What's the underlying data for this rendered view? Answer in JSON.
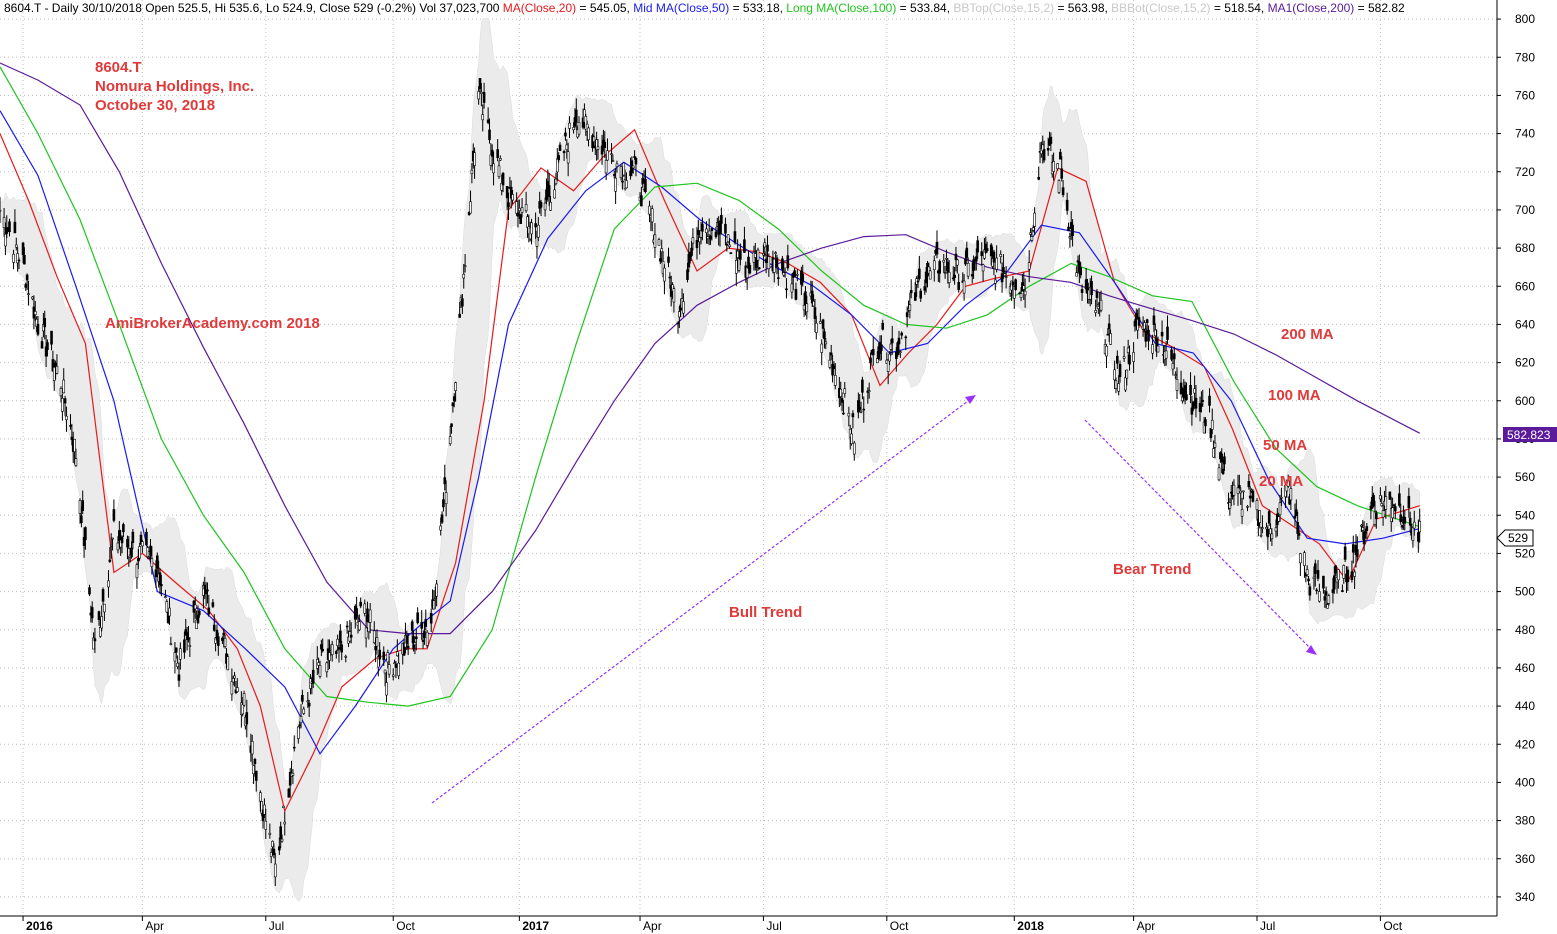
{
  "header": {
    "parts": [
      {
        "text": "8604.T - Daily 30/10/2018 Open 525.5, Hi 535.6, Lo 524.9, Close 529 (-0.2%) Vol 37,023,700 ",
        "color": "#000000"
      },
      {
        "text": "MA(Close,20)",
        "color": "#e8191c"
      },
      {
        "text": " = 545.05, ",
        "color": "#000000"
      },
      {
        "text": "Mid MA(Close,50)",
        "color": "#1a1aee"
      },
      {
        "text": " = 533.18, ",
        "color": "#000000"
      },
      {
        "text": "Long MA(Close,100)",
        "color": "#1fc41f"
      },
      {
        "text": " = 533.84, ",
        "color": "#000000"
      },
      {
        "text": "BBTop(Close,15,2)",
        "color": "#c8c8c8"
      },
      {
        "text": " = 563.98, ",
        "color": "#000000"
      },
      {
        "text": "BBBot(Close,15,2)",
        "color": "#c8c8c8"
      },
      {
        "text": " = 518.54, ",
        "color": "#000000"
      },
      {
        "text": "MA1(Close,200)",
        "color": "#5a1a9a"
      },
      {
        "text": " = 582.82",
        "color": "#000000"
      }
    ]
  },
  "title_block": {
    "line1": "8604.T",
    "line2": "Nomura Holdings, Inc.",
    "line3": "October 30, 2018",
    "color": "#e03a3a"
  },
  "watermark": {
    "text": "AmiBrokerAcademy.com  2018",
    "color": "#e03a3a"
  },
  "annotations": {
    "color": "#e03a3a",
    "arrow_color": "#9b30ff",
    "bull_trend": "Bull Trend",
    "bear_trend": "Bear Trend",
    "ma200": "200 MA",
    "ma100": "100 MA",
    "ma50": "50 MA",
    "ma20": "20 MA"
  },
  "price_tags": {
    "ma200_value": "582.823",
    "ma200_color": "#5a1a9a",
    "last_close": "529"
  },
  "chart_data": {
    "type": "line",
    "ylim": [
      330,
      810
    ],
    "grid": true,
    "y_ticks": [
      340,
      360,
      380,
      400,
      420,
      440,
      460,
      480,
      500,
      520,
      540,
      560,
      580,
      600,
      620,
      640,
      660,
      680,
      700,
      720,
      740,
      760,
      780,
      800
    ],
    "x_ticks": [
      {
        "label": "2016",
        "date": "2016-01-04",
        "bold": true
      },
      {
        "label": "Apr",
        "date": "2016-04-01",
        "bold": false
      },
      {
        "label": "Jul",
        "date": "2016-07-01",
        "bold": false
      },
      {
        "label": "Oct",
        "date": "2016-10-03",
        "bold": false
      },
      {
        "label": "2017",
        "date": "2017-01-04",
        "bold": true
      },
      {
        "label": "Apr",
        "date": "2017-04-03",
        "bold": false
      },
      {
        "label": "Jul",
        "date": "2017-07-03",
        "bold": false
      },
      {
        "label": "Oct",
        "date": "2017-10-02",
        "bold": false
      },
      {
        "label": "2018",
        "date": "2018-01-04",
        "bold": true
      },
      {
        "label": "Apr",
        "date": "2018-04-02",
        "bold": false
      },
      {
        "label": "Jul",
        "date": "2018-07-02",
        "bold": false
      },
      {
        "label": "Oct",
        "date": "2018-10-01",
        "bold": false
      }
    ],
    "x_range": [
      "2015-12-18",
      "2018-12-26"
    ],
    "close": {
      "x": [
        "2015-12-18",
        "2016-01-04",
        "2016-01-15",
        "2016-02-01",
        "2016-02-12",
        "2016-02-26",
        "2016-03-11",
        "2016-03-28",
        "2016-04-12",
        "2016-04-28",
        "2016-05-16",
        "2016-06-01",
        "2016-06-16",
        "2016-06-27",
        "2016-07-08",
        "2016-07-25",
        "2016-08-10",
        "2016-08-25",
        "2016-09-12",
        "2016-09-28",
        "2016-10-14",
        "2016-10-31",
        "2016-11-10",
        "2016-11-21",
        "2016-12-05",
        "2016-12-16",
        "2016-12-28",
        "2017-01-16",
        "2017-02-01",
        "2017-02-15",
        "2017-03-01",
        "2017-03-15",
        "2017-03-30",
        "2017-04-14",
        "2017-05-01",
        "2017-05-18",
        "2017-06-05",
        "2017-06-21",
        "2017-07-06",
        "2017-07-21",
        "2017-08-07",
        "2017-08-23",
        "2017-09-08",
        "2017-09-25",
        "2017-10-10",
        "2017-10-25",
        "2017-11-10",
        "2017-11-27",
        "2017-12-11",
        "2017-12-27",
        "2018-01-12",
        "2018-01-24",
        "2018-02-07",
        "2018-02-22",
        "2018-03-09",
        "2018-03-23",
        "2018-04-06",
        "2018-04-23",
        "2018-05-10",
        "2018-05-28",
        "2018-06-11",
        "2018-06-26",
        "2018-07-11",
        "2018-07-25",
        "2018-08-09",
        "2018-08-24",
        "2018-09-10",
        "2018-09-26",
        "2018-10-10",
        "2018-10-30"
      ],
      "values": [
        700,
        672,
        640,
        610,
        572,
        470,
        530,
        520,
        515,
        460,
        500,
        470,
        440,
        395,
        355,
        430,
        462,
        468,
        490,
        460,
        472,
        485,
        550,
        640,
        760,
        730,
        705,
        690,
        720,
        750,
        738,
        725,
        720,
        690,
        648,
        695,
        685,
        670,
        680,
        665,
        650,
        620,
        582,
        630,
        628,
        660,
        672,
        665,
        675,
        668,
        660,
        735,
        720,
        660,
        645,
        610,
        640,
        632,
        605,
        590,
        552,
        548,
        530,
        555,
        505,
        498,
        514,
        545,
        548,
        529
      ]
    },
    "series": [
      {
        "name": "MA(Close,20)",
        "color": "#e8191c",
        "last": 545.05,
        "x": [
          "2015-12-18",
          "2016-01-08",
          "2016-01-29",
          "2016-02-19",
          "2016-03-11",
          "2016-04-01",
          "2016-04-25",
          "2016-05-20",
          "2016-06-10",
          "2016-06-27",
          "2016-07-15",
          "2016-08-05",
          "2016-08-26",
          "2016-09-20",
          "2016-10-12",
          "2016-10-28",
          "2016-11-18",
          "2016-12-09",
          "2016-12-27",
          "2017-01-20",
          "2017-02-13",
          "2017-03-07",
          "2017-03-30",
          "2017-04-21",
          "2017-05-15",
          "2017-06-07",
          "2017-06-29",
          "2017-07-21",
          "2017-08-14",
          "2017-09-06",
          "2017-09-27",
          "2017-10-18",
          "2017-11-08",
          "2017-11-29",
          "2017-12-20",
          "2018-01-15",
          "2018-02-05",
          "2018-02-26",
          "2018-03-19",
          "2018-04-10",
          "2018-05-01",
          "2018-05-24",
          "2018-06-14",
          "2018-07-06",
          "2018-07-27",
          "2018-08-17",
          "2018-09-07",
          "2018-09-28",
          "2018-10-30"
        ],
        "values": [
          740,
          705,
          665,
          630,
          510,
          520,
          505,
          490,
          470,
          440,
          385,
          415,
          450,
          465,
          470,
          470,
          515,
          600,
          700,
          722,
          710,
          728,
          742,
          705,
          668,
          680,
          678,
          672,
          662,
          645,
          608,
          625,
          640,
          660,
          664,
          668,
          722,
          715,
          662,
          636,
          628,
          618,
          585,
          545,
          535,
          525,
          505,
          538,
          545
        ]
      },
      {
        "name": "Mid MA(Close,50)",
        "color": "#1a1aee",
        "last": 533.18,
        "x": [
          "2015-12-18",
          "2016-01-15",
          "2016-02-12",
          "2016-03-11",
          "2016-04-12",
          "2016-05-16",
          "2016-06-16",
          "2016-07-15",
          "2016-08-10",
          "2016-09-05",
          "2016-10-03",
          "2016-10-24",
          "2016-11-14",
          "2016-12-05",
          "2016-12-27",
          "2017-01-25",
          "2017-02-22",
          "2017-03-22",
          "2017-04-19",
          "2017-05-17",
          "2017-06-14",
          "2017-07-12",
          "2017-08-09",
          "2017-09-06",
          "2017-10-04",
          "2017-11-01",
          "2017-11-29",
          "2017-12-27",
          "2018-01-24",
          "2018-02-21",
          "2018-03-21",
          "2018-04-18",
          "2018-05-16",
          "2018-06-13",
          "2018-07-11",
          "2018-08-08",
          "2018-09-05",
          "2018-10-03",
          "2018-10-30"
        ],
        "values": [
          752,
          718,
          660,
          600,
          500,
          490,
          470,
          450,
          415,
          440,
          470,
          483,
          495,
          560,
          640,
          685,
          710,
          725,
          712,
          695,
          682,
          670,
          660,
          645,
          625,
          630,
          650,
          665,
          692,
          688,
          660,
          630,
          625,
          600,
          558,
          528,
          525,
          528,
          533
        ]
      },
      {
        "name": "Long MA(Close,100)",
        "color": "#1fc41f",
        "last": 533.84,
        "x": [
          "2015-12-18",
          "2016-01-15",
          "2016-02-15",
          "2016-03-15",
          "2016-04-15",
          "2016-05-16",
          "2016-06-15",
          "2016-07-15",
          "2016-08-15",
          "2016-09-15",
          "2016-10-14",
          "2016-11-14",
          "2016-12-15",
          "2017-01-16",
          "2017-02-15",
          "2017-03-15",
          "2017-04-14",
          "2017-05-15",
          "2017-06-15",
          "2017-07-14",
          "2017-08-15",
          "2017-09-15",
          "2017-10-16",
          "2017-11-15",
          "2017-12-15",
          "2018-01-15",
          "2018-02-15",
          "2018-03-15",
          "2018-04-16",
          "2018-05-15",
          "2018-06-15",
          "2018-07-16",
          "2018-08-15",
          "2018-09-14",
          "2018-10-30"
        ],
        "values": [
          775,
          740,
          695,
          640,
          580,
          540,
          510,
          470,
          445,
          442,
          440,
          445,
          480,
          560,
          630,
          690,
          712,
          714,
          705,
          690,
          668,
          650,
          640,
          638,
          645,
          660,
          672,
          665,
          655,
          652,
          610,
          575,
          555,
          545,
          534
        ]
      },
      {
        "name": "MA1(Close,200)",
        "color": "#5a1a9a",
        "last": 582.82,
        "x": [
          "2015-12-18",
          "2016-01-15",
          "2016-02-15",
          "2016-03-15",
          "2016-04-15",
          "2016-05-16",
          "2016-06-15",
          "2016-07-15",
          "2016-08-15",
          "2016-09-15",
          "2016-10-14",
          "2016-11-14",
          "2016-12-15",
          "2017-01-16",
          "2017-02-15",
          "2017-03-15",
          "2017-04-14",
          "2017-05-15",
          "2017-06-15",
          "2017-07-14",
          "2017-08-15",
          "2017-09-15",
          "2017-10-16",
          "2017-11-15",
          "2017-12-15",
          "2018-01-15",
          "2018-02-15",
          "2018-03-15",
          "2018-04-16",
          "2018-05-15",
          "2018-06-15",
          "2018-07-16",
          "2018-08-15",
          "2018-09-14",
          "2018-10-30"
        ],
        "values": [
          777,
          768,
          755,
          720,
          672,
          628,
          588,
          545,
          505,
          480,
          478,
          478,
          500,
          532,
          568,
          600,
          630,
          650,
          662,
          672,
          680,
          686,
          687,
          678,
          670,
          665,
          662,
          655,
          648,
          642,
          635,
          624,
          612,
          600,
          583
        ]
      },
      {
        "name": "BBTop(Close,15,2)",
        "color": "#c8c8c8",
        "last": 563.98
      },
      {
        "name": "BBBot(Close,15,2)",
        "color": "#c8c8c8",
        "last": 518.54
      }
    ],
    "annotations": [
      {
        "text": "Bull Trend",
        "x": "2017-04-01",
        "y": 630
      },
      {
        "text": "Bear Trend",
        "x": "2017-04-01",
        "y": 630
      }
    ]
  }
}
